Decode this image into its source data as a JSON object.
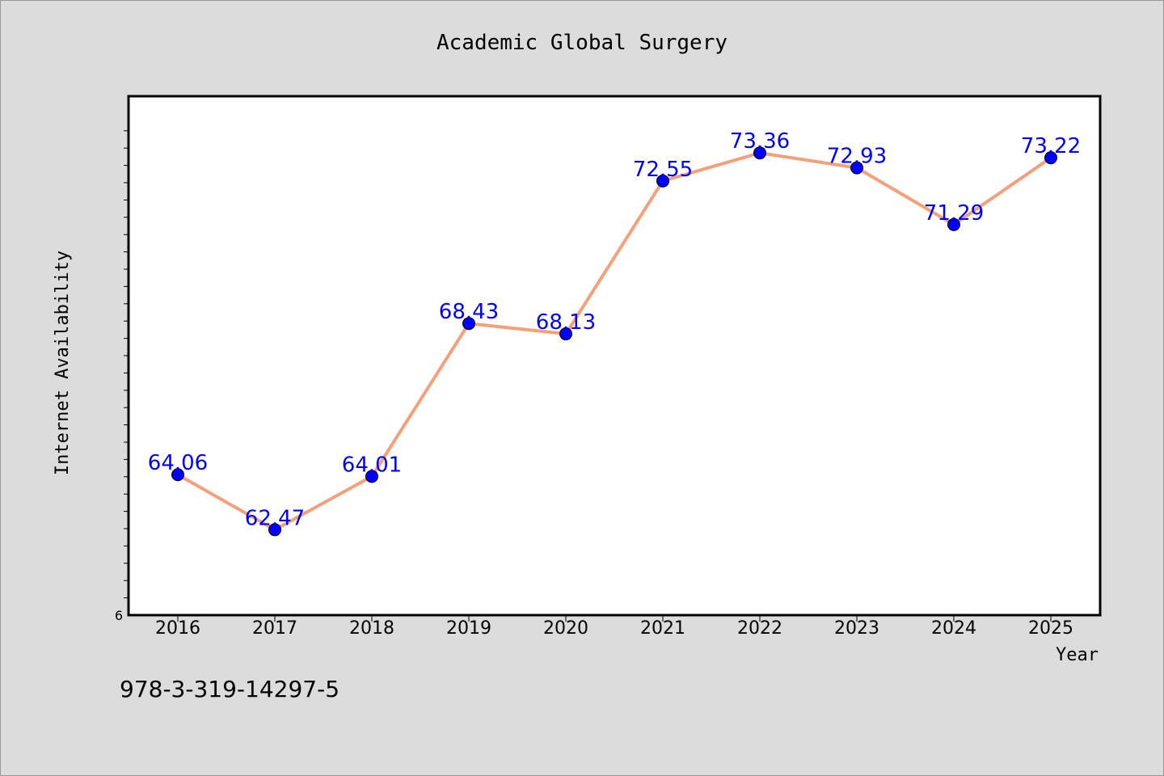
{
  "footer": {
    "isbn": "978-3-319-14297-5"
  },
  "colors": {
    "background": "#dcdcdc",
    "plot_background": "#ffffff",
    "line": "#f4a07a",
    "marker": "#0000ff",
    "data_label": "#0000ff"
  },
  "chart_data": {
    "type": "line",
    "title": "Academic Global Surgery",
    "xlabel": "Year",
    "ylabel": "Internet Availability",
    "categories": [
      "2016",
      "2017",
      "2018",
      "2019",
      "2020",
      "2021",
      "2022",
      "2023",
      "2024",
      "2025"
    ],
    "series": [
      {
        "values": [
          64.06,
          62.47,
          64.01,
          68.43,
          68.13,
          72.55,
          73.36,
          72.93,
          71.29,
          73.22
        ]
      }
    ],
    "data_labels": [
      "64.06",
      "62.47",
      "64.01",
      "68.43",
      "68.13",
      "72.55",
      "73.36",
      "72.93",
      "71.29",
      "73.22"
    ],
    "ylim": [
      60,
      75
    ],
    "y_tick_labels": [
      "6"
    ],
    "grid": false,
    "legend": "none"
  }
}
